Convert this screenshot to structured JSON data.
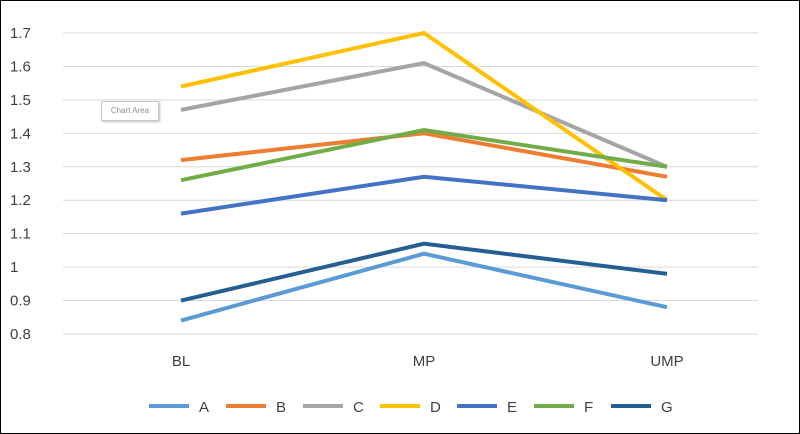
{
  "chart_data": {
    "type": "line",
    "categories": [
      "BL",
      "MP",
      "UMP"
    ],
    "ylim": [
      0.8,
      1.7
    ],
    "yticks": [
      0.8,
      0.9,
      1,
      1.1,
      1.2,
      1.3,
      1.4,
      1.5,
      1.6,
      1.7
    ],
    "ytick_labels": [
      "0.8",
      "0.9",
      "1",
      "1.1",
      "1.2",
      "1.3",
      "1.4",
      "1.5",
      "1.6",
      "1.7"
    ],
    "grid": true,
    "legend_position": "bottom",
    "series": [
      {
        "name": "A",
        "color": "#5B9BD5",
        "values": [
          0.84,
          1.04,
          0.88
        ]
      },
      {
        "name": "B",
        "color": "#ED7D31",
        "values": [
          1.32,
          1.4,
          1.27
        ]
      },
      {
        "name": "C",
        "color": "#A5A5A5",
        "values": [
          1.47,
          1.61,
          1.3
        ]
      },
      {
        "name": "D",
        "color": "#FFC000",
        "values": [
          1.54,
          1.7,
          1.2
        ]
      },
      {
        "name": "E",
        "color": "#4472C4",
        "values": [
          1.16,
          1.27,
          1.2
        ]
      },
      {
        "name": "F",
        "color": "#70AD47",
        "values": [
          1.26,
          1.41,
          1.3
        ]
      },
      {
        "name": "G",
        "color": "#255E91",
        "values": [
          0.9,
          1.07,
          0.98
        ]
      }
    ]
  },
  "tooltip": {
    "text": "Chart Area"
  }
}
